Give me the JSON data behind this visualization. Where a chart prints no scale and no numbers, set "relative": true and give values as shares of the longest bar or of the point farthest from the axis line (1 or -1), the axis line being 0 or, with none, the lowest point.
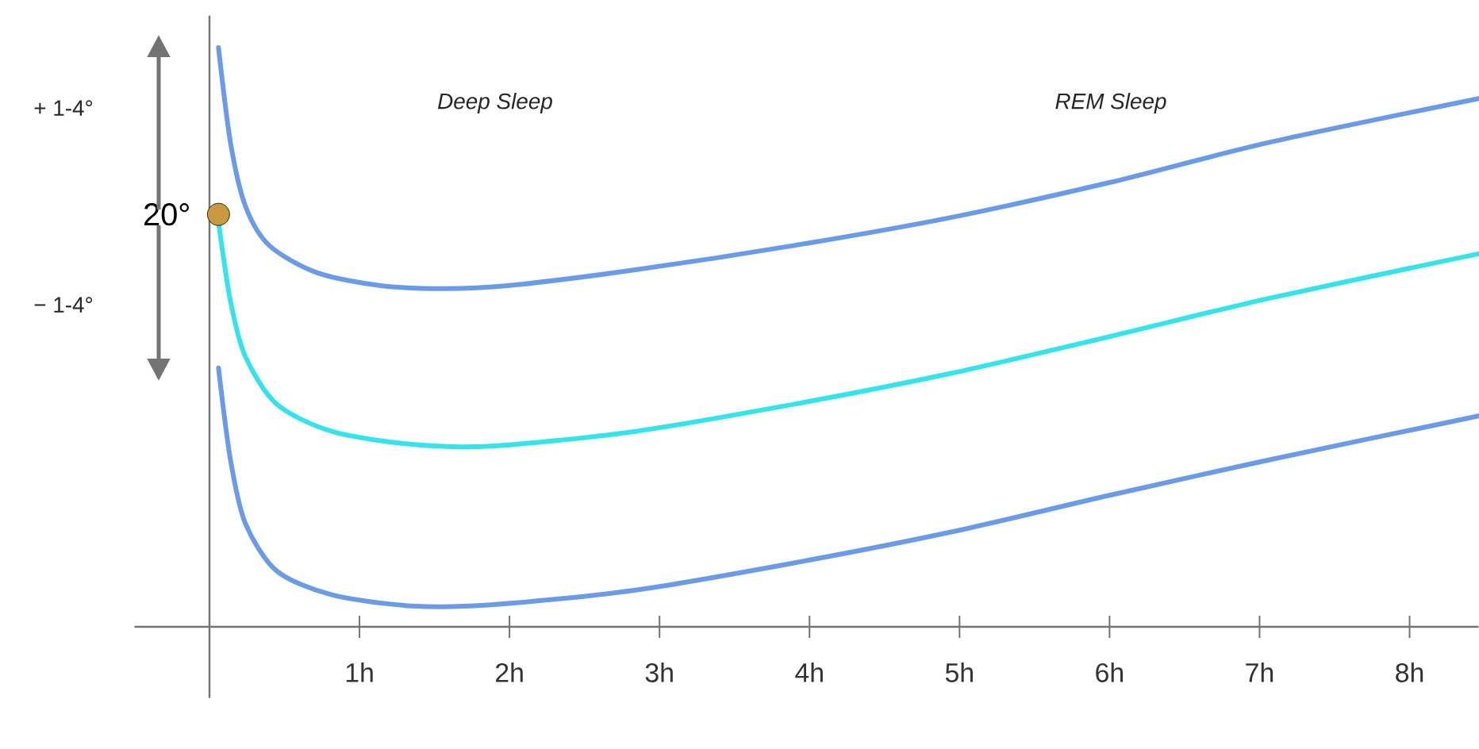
{
  "chart_data": {
    "type": "line",
    "relative": true,
    "annotations": [
      "Deep Sleep",
      "REM Sleep",
      "+ 1-4°",
      "− 1-4°",
      {
        "text": "20°",
        "x": 0.06,
        "y": 0.712
      }
    ],
    "xlim": [
      -0.5,
      8.46
    ],
    "xticks": [
      {
        "value": 1,
        "label": "1h"
      },
      {
        "value": 2,
        "label": "2h"
      },
      {
        "value": 3,
        "label": "3h"
      },
      {
        "value": 4,
        "label": "4h"
      },
      {
        "value": 5,
        "label": "5h"
      },
      {
        "value": 6,
        "label": "6h"
      },
      {
        "value": 7,
        "label": "7h"
      },
      {
        "value": 8,
        "label": "8h"
      }
    ],
    "series": [
      {
        "color": "#6a9be8",
        "x": [
          0.06,
          0.14,
          0.24,
          0.4,
          0.72,
          1.14,
          1.56,
          1.99,
          2.83,
          3.89,
          4.95,
          6.0,
          7.06,
          8.46
        ],
        "values": [
          1.0,
          0.836,
          0.726,
          0.658,
          0.611,
          0.589,
          0.584,
          0.589,
          0.616,
          0.658,
          0.707,
          0.767,
          0.836,
          0.912
        ]
      },
      {
        "color": "#35e4ea",
        "x": [
          0.06,
          0.14,
          0.24,
          0.45,
          0.82,
          1.35,
          1.88,
          2.83,
          3.89,
          4.95,
          6.0,
          7.06,
          8.46
        ],
        "values": [
          0.699,
          0.562,
          0.466,
          0.384,
          0.337,
          0.315,
          0.312,
          0.337,
          0.384,
          0.438,
          0.501,
          0.567,
          0.644
        ]
      },
      {
        "color": "#6a9be8",
        "x": [
          0.06,
          0.14,
          0.24,
          0.45,
          0.82,
          1.35,
          1.88,
          2.83,
          3.89,
          4.95,
          6.0,
          7.06,
          8.46
        ],
        "values": [
          0.447,
          0.288,
          0.178,
          0.096,
          0.055,
          0.036,
          0.038,
          0.063,
          0.11,
          0.164,
          0.227,
          0.288,
          0.364
        ]
      },
      {
        "type": "scatter",
        "color": "#c9993f",
        "x": [
          0.06
        ],
        "values": [
          0.712
        ]
      }
    ]
  }
}
